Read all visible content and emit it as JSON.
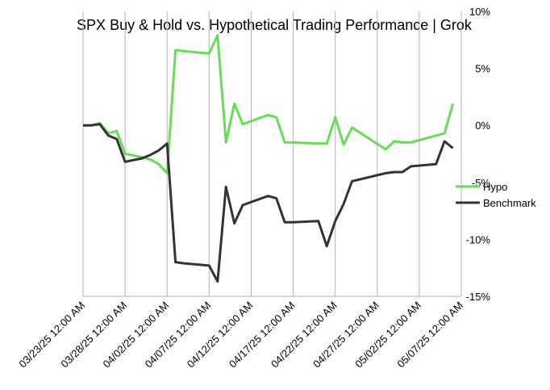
{
  "chart_data": {
    "type": "line",
    "title": "SPX Buy & Hold vs. Hypothetical Trading Performance | Grok",
    "xlabel": "",
    "ylabel": "",
    "x_tick_labels": [
      "03/23/25 12:00 AM",
      "03/28/25 12:00 AM",
      "04/02/25 12:00 AM",
      "04/07/25 12:00 AM",
      "04/12/25 12:00 AM",
      "04/17/25 12:00 AM",
      "04/22/25 12:00 AM",
      "04/27/25 12:00 AM",
      "05/02/25 12:00 AM",
      "05/07/25 12:00 AM"
    ],
    "y_tick_labels": [
      "10%",
      "5%",
      "0%",
      "-5%",
      "-10%",
      "-15%"
    ],
    "y_ticks": [
      10,
      5,
      0,
      -5,
      -10,
      -15
    ],
    "ylim": [
      -15,
      10
    ],
    "xlim_days": [
      0,
      45
    ],
    "grid": "vertical",
    "legend_position": "right",
    "series": [
      {
        "name": "Hypo",
        "color": "#66dd55",
        "x": [
          0,
          1,
          2,
          3,
          4,
          5,
          7,
          8,
          9,
          10,
          11,
          12,
          15,
          16,
          17,
          18,
          19,
          22,
          23,
          24,
          25,
          28,
          29,
          30,
          31,
          32,
          36,
          37,
          38,
          39,
          42,
          43,
          44
        ],
        "y": [
          0,
          0,
          0.2,
          -0.7,
          -0.5,
          -2.5,
          -2.8,
          -3.0,
          -3.4,
          -4.2,
          6.6,
          6.5,
          6.3,
          7.9,
          -1.5,
          1.9,
          0.1,
          0.9,
          0.7,
          -1.5,
          -1.5,
          -1.6,
          -1.6,
          0.7,
          -1.7,
          -0.2,
          -2.1,
          -1.4,
          -1.5,
          -1.5,
          -0.9,
          -0.7,
          1.9
        ]
      },
      {
        "name": "Benchmark",
        "color": "#333333",
        "x": [
          0,
          1,
          2,
          3,
          4,
          5,
          7,
          8,
          9,
          10,
          11,
          12,
          15,
          16,
          17,
          18,
          19,
          22,
          23,
          24,
          25,
          28,
          29,
          30,
          31,
          32,
          36,
          37,
          38,
          39,
          42,
          43,
          44
        ],
        "y": [
          0,
          0,
          0.1,
          -0.9,
          -1.2,
          -3.2,
          -2.9,
          -2.6,
          -2.2,
          -1.6,
          -12.0,
          -12.1,
          -12.3,
          -13.7,
          -5.4,
          -8.6,
          -7.0,
          -6.2,
          -6.4,
          -8.5,
          -8.5,
          -8.4,
          -10.6,
          -8.4,
          -6.9,
          -4.9,
          -4.2,
          -4.1,
          -4.1,
          -3.6,
          -3.4,
          -1.4,
          -2.0
        ]
      }
    ]
  }
}
